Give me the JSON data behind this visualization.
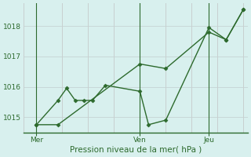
{
  "title": "",
  "xlabel": "Pression niveau de la mer( hPa )",
  "ylabel": "",
  "bg_color": "#d8f0ee",
  "line_color": "#2d6a2d",
  "grid_color_h": "#c8d8d8",
  "grid_color_v": "#c8d0d0",
  "tick_label_color": "#2d6a2d",
  "xlabel_color": "#2d6a2d",
  "axis_color": "#2d6a2d",
  "ylim": [
    1014.5,
    1018.75
  ],
  "yticks": [
    1015,
    1016,
    1017,
    1018
  ],
  "xlim": [
    0,
    26
  ],
  "xtick_positions": [
    1.5,
    13.5,
    21.5
  ],
  "xtick_labels": [
    "Mer",
    "Ven",
    "Jeu"
  ],
  "vline_positions": [
    1.5,
    13.5,
    21.5
  ],
  "xgrid_positions": [
    4.5,
    7.5,
    10.5,
    16.5,
    19.5,
    22.5,
    25.5
  ],
  "series1_x": [
    1.5,
    4.0,
    5.0,
    6.0,
    7.0,
    8.0,
    9.5,
    13.5,
    14.5,
    16.5,
    21.5,
    23.5,
    25.5
  ],
  "series1_y": [
    1014.75,
    1015.55,
    1015.95,
    1015.55,
    1015.55,
    1015.55,
    1016.05,
    1015.85,
    1014.75,
    1014.9,
    1017.95,
    1017.55,
    1018.55
  ],
  "series2_x": [
    1.5,
    4.0,
    13.5,
    16.5,
    21.5,
    23.5,
    25.5
  ],
  "series2_y": [
    1014.75,
    1014.75,
    1016.75,
    1016.6,
    1017.8,
    1017.55,
    1018.55
  ],
  "marker": "D",
  "markersize": 2.5,
  "linewidth": 1.0,
  "xlabel_fontsize": 7.5,
  "tick_fontsize": 6.5
}
